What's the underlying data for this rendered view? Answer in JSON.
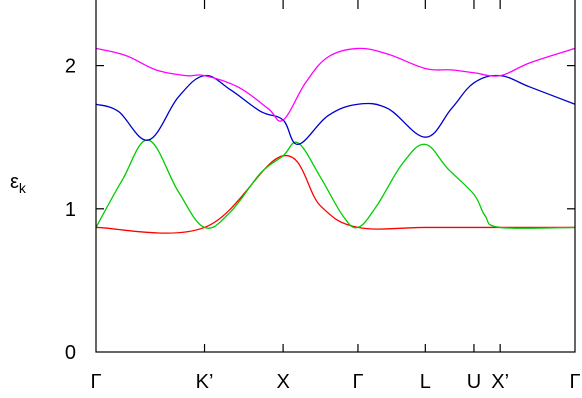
{
  "chart_data": {
    "type": "line",
    "title": "",
    "ylabel": "ε",
    "ylabel_sub": "k",
    "xlabel": "",
    "ylim": [
      0,
      2.5
    ],
    "xlim": [
      0,
      6.4
    ],
    "yticks": [
      0,
      1,
      2
    ],
    "ytick_labels": [
      "0",
      "1",
      "2"
    ],
    "xticks": [
      0,
      1.45,
      2.5,
      3.5,
      4.4,
      5.05,
      5.4,
      6.4
    ],
    "xtick_labels": [
      "Γ",
      "K’",
      "X",
      "Γ",
      "L",
      "U",
      "X’",
      "Γ"
    ],
    "grid": false,
    "series": [
      {
        "color": "#ff0000",
        "x": [
          0,
          1.45,
          2.5,
          3.0,
          3.5,
          4.4,
          5.4,
          6.4
        ],
        "values": [
          0.87,
          0.87,
          1.37,
          1.02,
          0.87,
          0.87,
          0.87,
          0.87
        ]
      },
      {
        "color": "#00cc00",
        "x": [
          0,
          0.35,
          0.7,
          1.1,
          1.45,
          1.8,
          2.2,
          2.5,
          2.7,
          3.0,
          3.3,
          3.5,
          3.75,
          4.1,
          4.4,
          4.7,
          5.05,
          5.2,
          5.4,
          6.4
        ],
        "values": [
          0.87,
          1.2,
          1.48,
          1.12,
          0.87,
          0.98,
          1.25,
          1.37,
          1.46,
          1.22,
          0.95,
          0.87,
          1.02,
          1.32,
          1.45,
          1.28,
          1.1,
          0.95,
          0.87,
          0.87
        ]
      },
      {
        "color": "#0000cc",
        "x": [
          0,
          0.3,
          0.7,
          1.1,
          1.45,
          1.8,
          2.2,
          2.5,
          2.7,
          3.1,
          3.5,
          3.9,
          4.4,
          4.75,
          5.05,
          5.4,
          5.8,
          6.4
        ],
        "values": [
          1.73,
          1.68,
          1.48,
          1.78,
          1.93,
          1.83,
          1.68,
          1.62,
          1.45,
          1.65,
          1.73,
          1.7,
          1.5,
          1.7,
          1.88,
          1.93,
          1.85,
          1.73
        ]
      },
      {
        "color": "#ff00ff",
        "x": [
          0,
          0.4,
          0.8,
          1.2,
          1.45,
          1.9,
          2.3,
          2.5,
          2.8,
          3.1,
          3.5,
          3.9,
          4.4,
          4.75,
          5.05,
          5.4,
          5.8,
          6.4
        ],
        "values": [
          2.12,
          2.07,
          1.97,
          1.93,
          1.93,
          1.85,
          1.7,
          1.62,
          1.88,
          2.06,
          2.12,
          2.08,
          1.98,
          1.97,
          1.95,
          1.93,
          2.02,
          2.12
        ]
      }
    ]
  }
}
